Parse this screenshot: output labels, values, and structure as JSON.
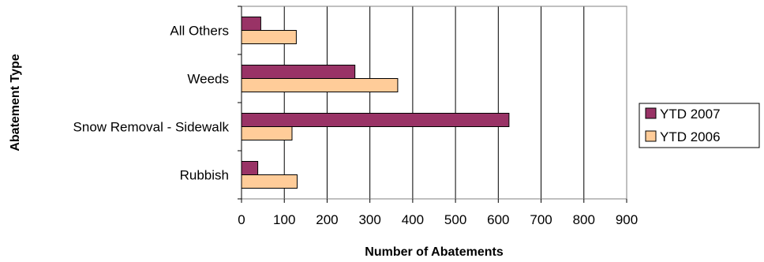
{
  "chart_data": {
    "type": "bar",
    "orientation": "horizontal",
    "categories": [
      "All Others",
      "Weeds",
      "Snow Removal - Sidewalk",
      "Rubbish"
    ],
    "series": [
      {
        "name": "YTD 2007",
        "values": [
          45,
          265,
          625,
          38
        ],
        "color": "#993366"
      },
      {
        "name": "YTD 2006",
        "values": [
          128,
          365,
          118,
          130
        ],
        "color": "#FFCC99"
      }
    ],
    "xlim": [
      0,
      900
    ],
    "xticks": [
      0,
      100,
      200,
      300,
      400,
      500,
      600,
      700,
      800,
      900
    ],
    "xlabel": "Number of Abatements",
    "ylabel": "Abatement Type",
    "grid": "vertical",
    "legend": "right"
  }
}
